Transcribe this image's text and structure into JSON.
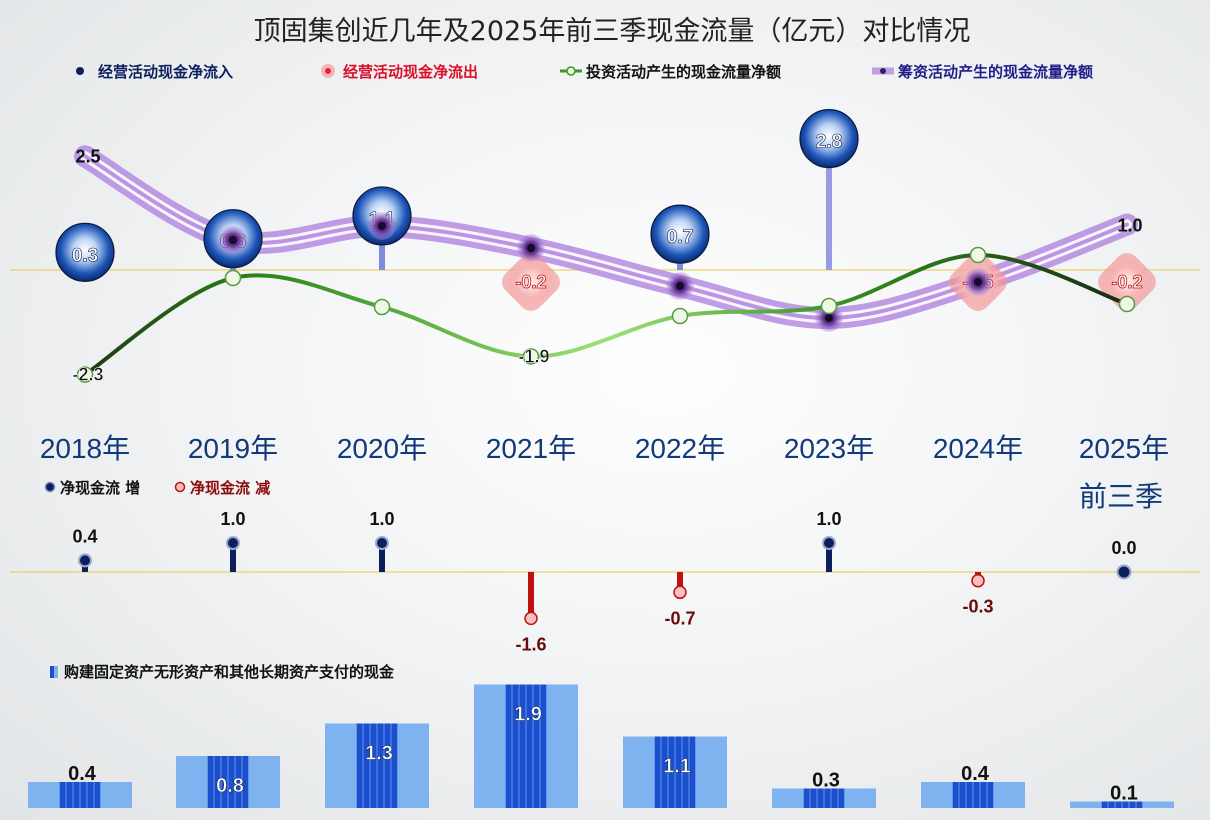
{
  "title": "顶固集创近几年及2025年前三季现金流量（亿元）对比情况",
  "colors": {
    "inflow": "#0b1f5c",
    "outflow": "#e0283c",
    "investing": "#3a9a1e",
    "financing": "#b48be0",
    "increase": "#0b1f5c",
    "decrease": "#c01010",
    "capex": "#1a4fd0",
    "capex_light": "#7fb3f0",
    "baseline": "#e8c84a"
  },
  "chart_data": [
    {
      "type": "line",
      "categories": [
        "2018年",
        "2019年",
        "2020年",
        "2021年",
        "2022年",
        "2023年",
        "2024年",
        "2025年前三季"
      ],
      "legend": [
        "经营活动现金净流入",
        "经营活动现金净流出",
        "投资活动产生的现金流量净额",
        "筹资活动产生的现金流量净额"
      ],
      "series": [
        {
          "name": "经营活动现金净流量",
          "values": [
            0.3,
            0.6,
            1.1,
            -0.2,
            0.7,
            2.8,
            -0.5,
            -0.2
          ]
        },
        {
          "name": "投资活动产生的现金流量净额",
          "values": [
            -2.3,
            null,
            null,
            -1.9,
            null,
            null,
            null,
            null
          ]
        },
        {
          "name": "筹资活动产生的现金流量净额",
          "values": [
            2.5,
            null,
            null,
            null,
            null,
            null,
            null,
            1.0
          ]
        }
      ]
    },
    {
      "type": "bar",
      "legend": [
        "净现金流 增",
        "净现金流 减"
      ],
      "series": [
        {
          "name": "净现金流",
          "values": [
            0.4,
            1.0,
            1.0,
            -1.6,
            -0.7,
            1.0,
            -0.3,
            0.0
          ]
        }
      ]
    },
    {
      "type": "bar",
      "legend": [
        "购建固定资产无形资产和其他长期资产支付的现金"
      ],
      "series": [
        {
          "name": "购建固定资产无形资产和其他长期资产支付的现金",
          "values": [
            0.4,
            0.8,
            1.3,
            1.9,
            1.1,
            0.3,
            0.4,
            0.1
          ]
        }
      ]
    }
  ]
}
